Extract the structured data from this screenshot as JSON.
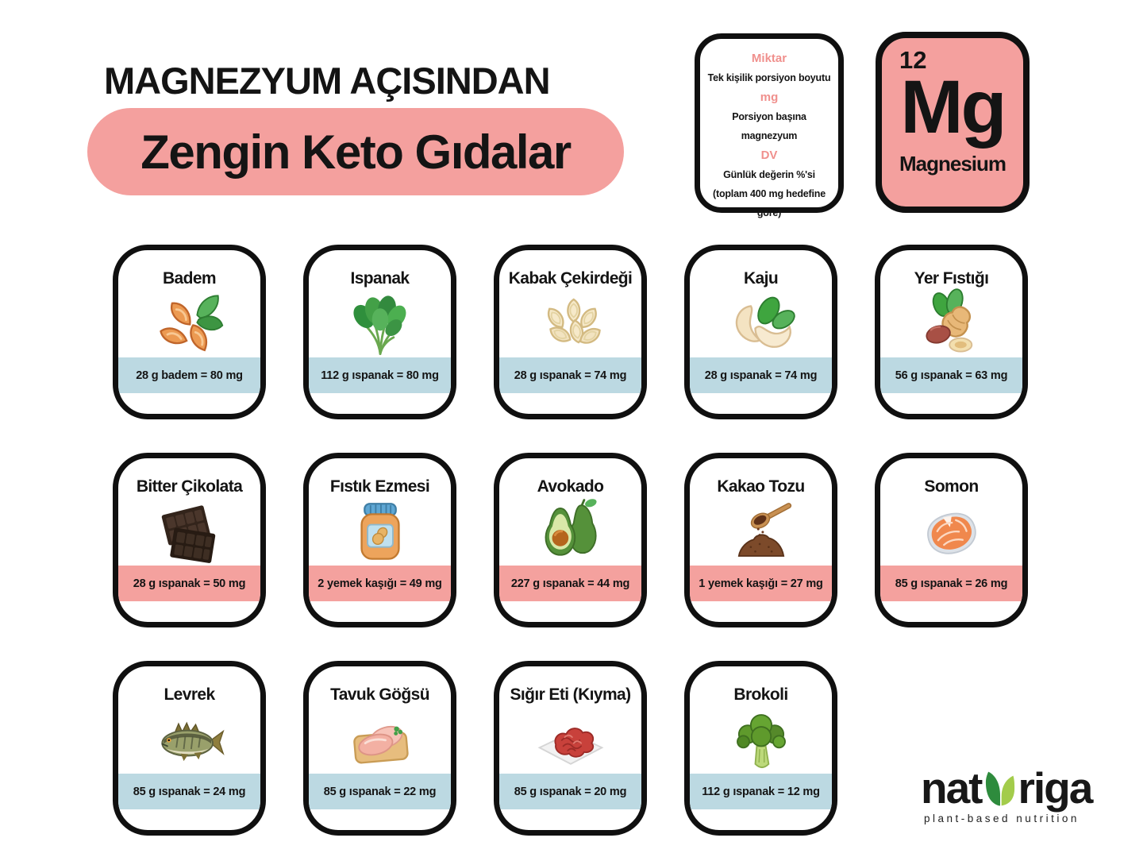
{
  "header": {
    "kicker": "MAGNEZYUM AÇISINDAN",
    "title": "Zengin Keto Gıdalar"
  },
  "legend": {
    "items": [
      {
        "term": "Miktar",
        "desc": "Tek kişilik porsiyon boyutu"
      },
      {
        "term": "mg",
        "desc": "Porsiyon başına magnezyum"
      },
      {
        "term": "DV",
        "desc": "Günlük değerin %'si (toplam 400 mg hedefine göre)"
      }
    ]
  },
  "element_card": {
    "atomic_number": "12",
    "symbol": "Mg",
    "name": "Magnesium"
  },
  "foods": [
    {
      "name": "Badem",
      "amount": "28 g badem = 80 mg",
      "banner": "blue",
      "icon": "almond-icon"
    },
    {
      "name": "Ispanak",
      "amount": "112 g ıspanak = 80 mg",
      "banner": "blue",
      "icon": "spinach-icon"
    },
    {
      "name": "Kabak Çekirdeği",
      "amount": "28 g ıspanak = 74 mg",
      "banner": "blue",
      "icon": "pumpkin-seeds-icon"
    },
    {
      "name": "Kaju",
      "amount": "28 g ıspanak = 74 mg",
      "banner": "blue",
      "icon": "cashew-icon"
    },
    {
      "name": "Yer Fıstığı",
      "amount": "56 g ıspanak = 63 mg",
      "banner": "blue",
      "icon": "peanut-icon"
    },
    {
      "name": "Bitter Çikolata",
      "amount": "28 g ıspanak = 50 mg",
      "banner": "pink",
      "icon": "dark-chocolate-icon"
    },
    {
      "name": "Fıstık Ezmesi",
      "amount": "2 yemek kaşığı = 49 mg",
      "banner": "pink",
      "icon": "peanut-butter-icon"
    },
    {
      "name": "Avokado",
      "amount": "227 g ıspanak = 44 mg",
      "banner": "pink",
      "icon": "avocado-icon"
    },
    {
      "name": "Kakao Tozu",
      "amount": "1 yemek kaşığı = 27 mg",
      "banner": "pink",
      "icon": "cocoa-powder-icon"
    },
    {
      "name": "Somon",
      "amount": "85 g ıspanak = 26 mg",
      "banner": "pink",
      "icon": "salmon-icon"
    },
    {
      "name": "Levrek",
      "amount": "85 g ıspanak = 24 mg",
      "banner": "blue",
      "icon": "sea-bass-icon"
    },
    {
      "name": "Tavuk Göğsü",
      "amount": "85 g ıspanak = 22 mg",
      "banner": "blue",
      "icon": "chicken-breast-icon"
    },
    {
      "name": "Sığır Eti (Kıyma)",
      "amount": "85 g ıspanak = 20 mg",
      "banner": "blue",
      "icon": "ground-beef-icon"
    },
    {
      "name": "Brokoli",
      "amount": "112 g ıspanak = 12 mg",
      "banner": "blue",
      "icon": "broccoli-icon"
    }
  ],
  "logo": {
    "brand_prefix": "nat",
    "brand_suffix": "riga",
    "tagline": "plant-based nutrition"
  },
  "colors": {
    "accent_pink": "#f4a09e",
    "banner_pink": "#f4a19e",
    "banner_blue": "#bcd9e2",
    "ink": "#141414",
    "legend_term_pink": "#f0908d",
    "leaf_dark": "#2e8b3d",
    "leaf_light": "#a3cc4b"
  }
}
